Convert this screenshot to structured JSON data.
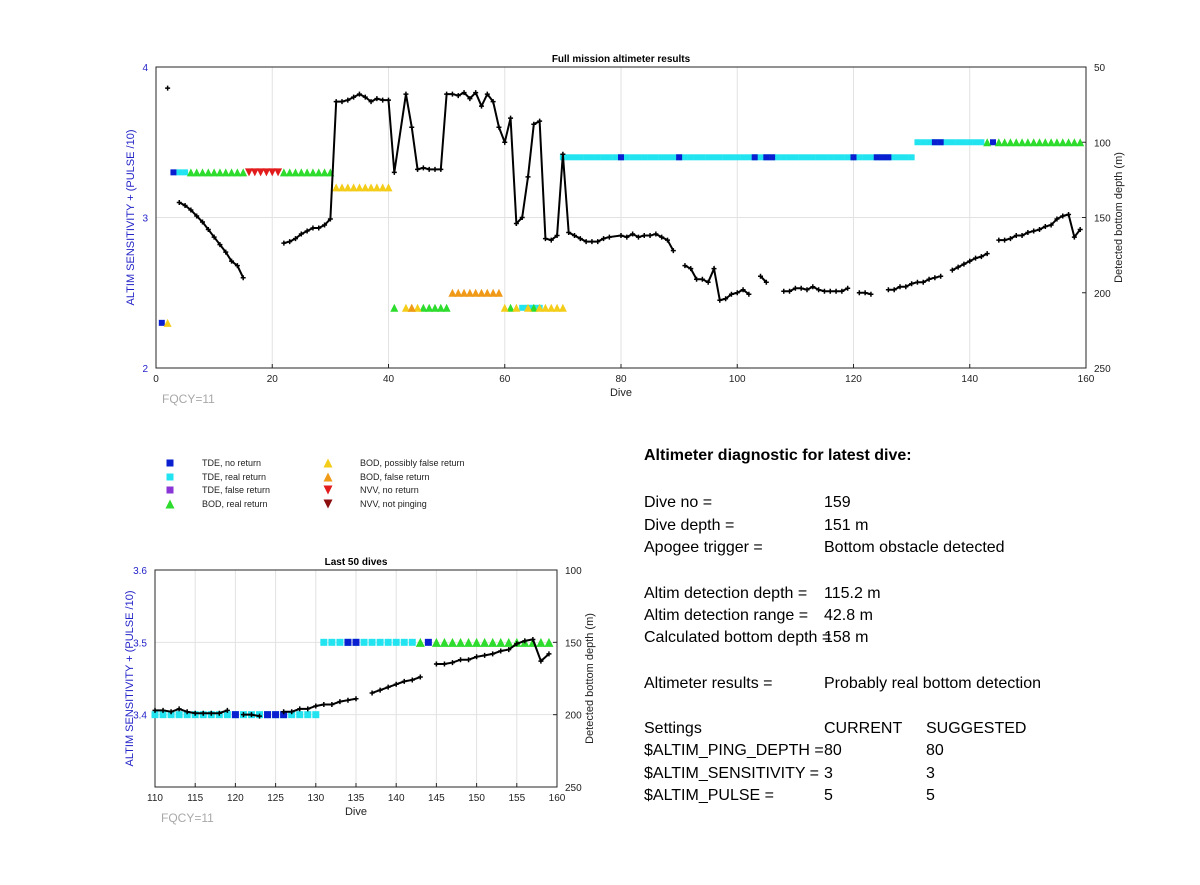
{
  "main_chart": {
    "title": "Full mission altimeter results",
    "xlabel": "Dive",
    "ylabel_left": "ALTIM SENSITIVITY + (PULSE /10)",
    "ylabel_right": "Detected bottom depth (m)",
    "annotation": "FQCY=11",
    "x_ticks": [
      "0",
      "20",
      "40",
      "60",
      "80",
      "100",
      "120",
      "140",
      "160"
    ],
    "y_left_ticks": [
      "2",
      "3",
      "4"
    ],
    "y_right_ticks": [
      "50",
      "100",
      "150",
      "200",
      "250"
    ]
  },
  "small_chart": {
    "title": "Last 50 dives",
    "xlabel": "Dive",
    "ylabel_left": "ALTIM SENSITIVITY + (PULSE /10)",
    "ylabel_right": "Detected bottom depth (m)",
    "annotation": "FQCY=11",
    "x_ticks": [
      "110",
      "115",
      "120",
      "125",
      "130",
      "135",
      "140",
      "145",
      "150",
      "155",
      "160"
    ],
    "y_left_ticks": [
      "3.4",
      "3.5",
      "3.6"
    ],
    "y_right_ticks": [
      "100",
      "150",
      "200",
      "250"
    ]
  },
  "legend": [
    {
      "label": "TDE, no return",
      "marker": "square",
      "color": "#0a1fcf"
    },
    {
      "label": "TDE, real return",
      "marker": "square",
      "color": "#22e4f0"
    },
    {
      "label": "TDE, false return",
      "marker": "square",
      "color": "#8a35d6"
    },
    {
      "label": "BOD, real return",
      "marker": "triangle-up",
      "color": "#2ddc2d"
    },
    {
      "label": "BOD, possibly false return",
      "marker": "triangle-up",
      "color": "#f4cd1a"
    },
    {
      "label": "BOD, false return",
      "marker": "triangle-up",
      "color": "#f09a18"
    },
    {
      "label": "NVV, no return",
      "marker": "triangle-down",
      "color": "#e21c1c"
    },
    {
      "label": "NVV, not pinging",
      "marker": "triangle-down",
      "color": "#8c0d0d"
    }
  ],
  "diagnostic": {
    "title": "Altimeter diagnostic for latest dive:",
    "rows": [
      {
        "label": "Dive no =",
        "value": "159"
      },
      {
        "label": "Dive depth =",
        "value": "151 m"
      },
      {
        "label": "Apogee trigger =",
        "value": "Bottom obstacle detected"
      },
      {
        "label": "Altim detection depth =",
        "value": "115.2 m"
      },
      {
        "label": "Altim detection range =",
        "value": "42.8 m"
      },
      {
        "label": "Calculated bottom depth =",
        "value": "158 m"
      },
      {
        "label": "Altimeter results =",
        "value": "Probably real bottom detection"
      }
    ],
    "settings": {
      "header": {
        "label": "Settings",
        "current": "CURRENT",
        "suggested": "SUGGESTED"
      },
      "rows": [
        {
          "label": "$ALTIM_PING_DEPTH =",
          "current": "80",
          "suggested": "80"
        },
        {
          "label": "$ALTIM_SENSITIVITY =",
          "current": "3",
          "suggested": "3"
        },
        {
          "label": "$ALTIM_PULSE =",
          "current": "5",
          "suggested": "5"
        }
      ]
    }
  },
  "chart_data": [
    {
      "type": "scatter",
      "title": "Full mission altimeter results",
      "xlabel": "Dive",
      "ylabel": "ALTIM SENSITIVITY + (PULSE /10)",
      "y2label": "Detected bottom depth (m)",
      "xlim": [
        0,
        160
      ],
      "ylim": [
        2,
        4
      ],
      "y2lim": [
        50,
        250
      ],
      "y2_reversed": true,
      "grid": true,
      "depth_series": {
        "name": "Detected bottom depth",
        "segments": [
          [
            [
              2,
              64
            ]
          ],
          [
            [
              4,
              140
            ],
            [
              5,
              142
            ],
            [
              6,
              145
            ],
            [
              7,
              149
            ],
            [
              8,
              153
            ],
            [
              9,
              158
            ],
            [
              10,
              163
            ],
            [
              11,
              168
            ],
            [
              12,
              173
            ],
            [
              13,
              179
            ],
            [
              14,
              182
            ],
            [
              15,
              190
            ]
          ],
          [
            [
              22,
              167
            ],
            [
              23,
              166
            ],
            [
              24,
              164
            ],
            [
              25,
              161
            ],
            [
              26,
              159
            ],
            [
              27,
              157
            ],
            [
              28,
              157
            ],
            [
              29,
              155
            ],
            [
              30,
              151
            ],
            [
              31,
              73
            ],
            [
              32,
              73
            ],
            [
              33,
              72
            ],
            [
              34,
              70
            ],
            [
              35,
              68
            ],
            [
              36,
              70
            ],
            [
              37,
              73
            ],
            [
              38,
              71
            ],
            [
              39,
              72
            ],
            [
              40,
              72
            ],
            [
              41,
              120
            ],
            [
              43,
              68
            ],
            [
              44,
              90
            ],
            [
              45,
              118
            ],
            [
              46,
              117
            ],
            [
              47,
              118
            ],
            [
              48,
              118
            ],
            [
              49,
              118
            ],
            [
              50,
              68
            ],
            [
              51,
              68
            ],
            [
              52,
              69
            ],
            [
              53,
              67
            ],
            [
              54,
              71
            ],
            [
              55,
              67
            ],
            [
              56,
              76
            ],
            [
              57,
              68
            ],
            [
              58,
              73
            ],
            [
              59,
              90
            ],
            [
              60,
              100
            ],
            [
              61,
              84
            ],
            [
              62,
              154
            ],
            [
              63,
              150
            ],
            [
              64,
              123
            ],
            [
              65,
              88
            ],
            [
              66,
              86
            ],
            [
              67,
              164
            ],
            [
              68,
              165
            ],
            [
              69,
              162
            ],
            [
              70,
              108
            ],
            [
              71,
              160
            ],
            [
              72,
              162
            ],
            [
              73,
              164
            ],
            [
              74,
              166
            ],
            [
              75,
              166
            ],
            [
              76,
              166
            ],
            [
              77,
              164
            ],
            [
              78,
              163
            ],
            [
              80,
              162
            ],
            [
              81,
              163
            ],
            [
              82,
              161
            ],
            [
              83,
              163
            ],
            [
              84,
              162
            ],
            [
              85,
              162
            ],
            [
              86,
              161
            ],
            [
              87,
              163
            ],
            [
              88,
              165
            ],
            [
              89,
              172
            ]
          ],
          [
            [
              91,
              182
            ],
            [
              92,
              184
            ],
            [
              93,
              191
            ],
            [
              94,
              191
            ],
            [
              95,
              193
            ],
            [
              96,
              184
            ],
            [
              97,
              205
            ],
            [
              98,
              204
            ],
            [
              99,
              201
            ],
            [
              100,
              200
            ],
            [
              101,
              198
            ],
            [
              102,
              201
            ]
          ],
          [
            [
              104,
              189
            ],
            [
              105,
              193
            ]
          ],
          [
            [
              108,
              199
            ],
            [
              109,
              199
            ],
            [
              110,
              197
            ],
            [
              111,
              197
            ],
            [
              112,
              198
            ],
            [
              113,
              196
            ],
            [
              114,
              198
            ],
            [
              115,
              199
            ],
            [
              116,
              199
            ],
            [
              117,
              199
            ],
            [
              118,
              199
            ],
            [
              119,
              197
            ]
          ],
          [
            [
              121,
              200
            ],
            [
              122,
              200
            ],
            [
              123,
              201
            ]
          ],
          [
            [
              126,
              198
            ],
            [
              127,
              198
            ],
            [
              128,
              196
            ],
            [
              129,
              196
            ],
            [
              130,
              194
            ],
            [
              131,
              193
            ],
            [
              132,
              193
            ],
            [
              133,
              191
            ],
            [
              134,
              190
            ],
            [
              135,
              189
            ]
          ],
          [
            [
              137,
              185
            ],
            [
              138,
              183
            ],
            [
              139,
              181
            ],
            [
              140,
              179
            ],
            [
              141,
              177
            ],
            [
              142,
              176
            ],
            [
              143,
              174
            ]
          ],
          [
            [
              145,
              165
            ],
            [
              146,
              165
            ],
            [
              147,
              164
            ],
            [
              148,
              162
            ],
            [
              149,
              162
            ],
            [
              150,
              160
            ],
            [
              151,
              159
            ],
            [
              152,
              158
            ],
            [
              153,
              156
            ],
            [
              154,
              155
            ],
            [
              155,
              151
            ],
            [
              156,
              149
            ],
            [
              157,
              148
            ],
            [
              158,
              163
            ],
            [
              159,
              158
            ]
          ]
        ]
      },
      "altim_settings_bands": [
        {
          "name": "TDE, no return",
          "points": [
            [
              1,
              2.3
            ],
            [
              3,
              3.3
            ],
            [
              80,
              3.4
            ],
            [
              90,
              3.4
            ],
            [
              103,
              3.4
            ],
            [
              105,
              3.4
            ],
            [
              106,
              3.4
            ],
            [
              120,
              3.4
            ],
            [
              124,
              3.4
            ],
            [
              125,
              3.4
            ],
            [
              126,
              3.4
            ],
            [
              134,
              3.5
            ],
            [
              135,
              3.5
            ],
            [
              144,
              3.5
            ]
          ]
        },
        {
          "name": "TDE, real return",
          "x_range": [
            [
              4,
              5,
              3.3
            ],
            [
              63,
              66,
              2.4
            ],
            [
              70,
              130,
              3.4
            ],
            [
              131,
              142,
              3.5
            ]
          ]
        },
        {
          "name": "TDE, false return",
          "points": [
            [
              144,
              3.5
            ]
          ]
        },
        {
          "name": "BOD, real return",
          "x_ranges": [
            [
              6,
              15,
              3.3
            ],
            [
              22,
              30,
              3.3
            ],
            [
              41,
              41,
              2.4
            ],
            [
              46,
              50,
              2.4
            ],
            [
              61,
              61,
              2.4
            ],
            [
              65,
              65,
              2.4
            ],
            [
              143,
              143,
              3.5
            ],
            [
              145,
              159,
              3.5
            ]
          ]
        },
        {
          "name": "BOD, possibly false return",
          "x_ranges": [
            [
              2,
              2,
              2.3
            ],
            [
              31,
              40,
              3.2
            ],
            [
              43,
              45,
              2.4
            ],
            [
              60,
              60,
              2.4
            ],
            [
              62,
              62,
              2.4
            ],
            [
              64,
              64,
              2.4
            ],
            [
              66,
              70,
              2.4
            ]
          ]
        },
        {
          "name": "BOD, false return",
          "x_ranges": [
            [
              44,
              44,
              2.4
            ],
            [
              51,
              59,
              2.5
            ]
          ]
        },
        {
          "name": "NVV, no return",
          "x_ranges": [
            [
              16,
              21,
              3.3
            ]
          ]
        }
      ]
    },
    {
      "type": "scatter",
      "title": "Last 50 dives",
      "xlabel": "Dive",
      "ylabel": "ALTIM SENSITIVITY + (PULSE /10)",
      "y2label": "Detected bottom depth (m)",
      "xlim": [
        110,
        160
      ],
      "ylim": [
        3.3,
        3.6
      ],
      "y2lim": [
        100,
        250
      ],
      "y2_reversed": true,
      "grid": true
    }
  ]
}
